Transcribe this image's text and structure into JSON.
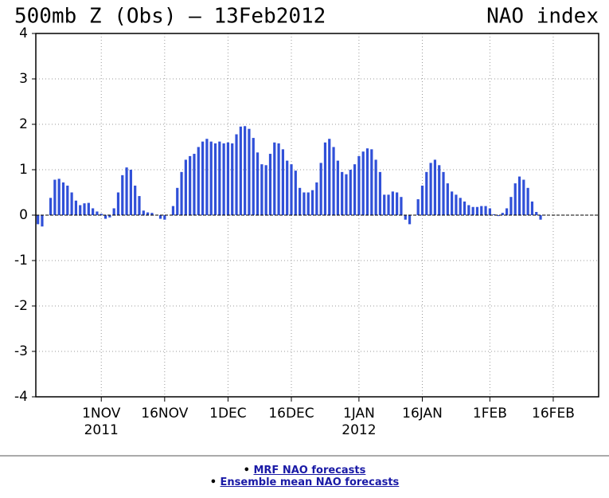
{
  "chart_data": {
    "type": "bar",
    "title": "500mb Z (Obs) – 13Feb2012",
    "title_right": "NAO index",
    "color": "#3050d8",
    "x": [
      1,
      2,
      3,
      4,
      5,
      6,
      7,
      8,
      9,
      10,
      11,
      12,
      13,
      14,
      15,
      16,
      17,
      18,
      19,
      20,
      21,
      22,
      23,
      24,
      25,
      26,
      27,
      28,
      29,
      30,
      31,
      32,
      33,
      34,
      35,
      36,
      37,
      38,
      39,
      40,
      41,
      42,
      43,
      44,
      45,
      46,
      47,
      48,
      49,
      50,
      51,
      52,
      53,
      54,
      55,
      56,
      57,
      58,
      59,
      60,
      61,
      62,
      63,
      64,
      65,
      66,
      67,
      68,
      69,
      70,
      71,
      72,
      73,
      74,
      75,
      76,
      77,
      78,
      79,
      80,
      81,
      82,
      83,
      84,
      85,
      86,
      87,
      88,
      89,
      90,
      91,
      92,
      93,
      94,
      95,
      96,
      97,
      98,
      99,
      100,
      101,
      102,
      103,
      104,
      105,
      106,
      107,
      108,
      109,
      110,
      111,
      112,
      113,
      114,
      115,
      116,
      117,
      118,
      119,
      120
    ],
    "values": [
      -0.2,
      -0.25,
      0,
      0.38,
      0.78,
      0.8,
      0.72,
      0.65,
      0.5,
      0.32,
      0.22,
      0.26,
      0.27,
      0.15,
      0.08,
      0.03,
      -0.08,
      -0.05,
      0.15,
      0.5,
      0.88,
      1.05,
      1.0,
      0.65,
      0.42,
      0.1,
      0.06,
      0.05,
      0,
      -0.08,
      -0.1,
      0,
      0.2,
      0.6,
      0.95,
      1.22,
      1.3,
      1.35,
      1.5,
      1.62,
      1.68,
      1.62,
      1.58,
      1.62,
      1.58,
      1.6,
      1.58,
      1.78,
      1.95,
      1.96,
      1.9,
      1.7,
      1.38,
      1.12,
      1.1,
      1.35,
      1.6,
      1.58,
      1.45,
      1.2,
      1.12,
      0.98,
      0.6,
      0.5,
      0.5,
      0.55,
      0.72,
      1.15,
      1.6,
      1.68,
      1.5,
      1.2,
      0.95,
      0.9,
      1.0,
      1.12,
      1.3,
      1.4,
      1.47,
      1.45,
      1.22,
      0.95,
      0.45,
      0.45,
      0.52,
      0.5,
      0.4,
      -0.1,
      -0.2,
      0,
      0.35,
      0.65,
      0.95,
      1.15,
      1.22,
      1.1,
      0.95,
      0.7,
      0.52,
      0.45,
      0.38,
      0.3,
      0.22,
      0.18,
      0.18,
      0.2,
      0.2,
      0.15,
      0.02,
      -0.02,
      0.05,
      0.15,
      0.4,
      0.7,
      0.85,
      0.78,
      0.6,
      0.3,
      0.07,
      -0.1
    ],
    "xlim": [
      0.5,
      133.75
    ],
    "xticks": [
      {
        "value": 16,
        "label": "1NOV"
      },
      {
        "value": 31,
        "label": "16NOV"
      },
      {
        "value": 46,
        "label": "1DEC"
      },
      {
        "value": 61,
        "label": "16DEC"
      },
      {
        "value": 77,
        "label": "1JAN"
      },
      {
        "value": 92,
        "label": "16JAN"
      },
      {
        "value": 108,
        "label": "1FEB"
      },
      {
        "value": 123,
        "label": "16FEB"
      }
    ],
    "year_labels": [
      {
        "value": 16,
        "label": "2011"
      },
      {
        "value": 77,
        "label": "2012"
      }
    ],
    "ylim": [
      -4,
      4
    ],
    "yticks": [
      -4,
      -3,
      -2,
      -1,
      0,
      1,
      2,
      3,
      4
    ],
    "grid": true
  },
  "links": [
    "MRF NAO forecasts",
    "Ensemble mean NAO forecasts"
  ]
}
